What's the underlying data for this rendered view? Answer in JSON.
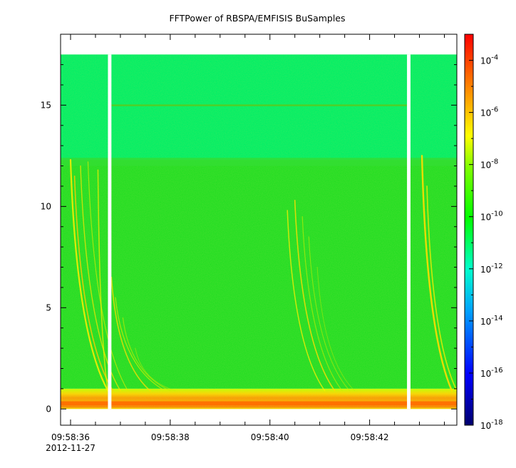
{
  "chart_data": {
    "type": "heatmap",
    "title": "FFTPower of RBSPA/EMFISIS  BuSamples",
    "xlabel": "",
    "ylabel": "",
    "x_ticks": [
      {
        "label": "09:58:36",
        "sublabel": "2012-11-27",
        "t": 36
      },
      {
        "label": "09:58:38",
        "t": 38
      },
      {
        "label": "09:58:40",
        "t": 40
      },
      {
        "label": "09:58:42",
        "t": 42
      }
    ],
    "x_range_seconds": [
      35.8,
      43.75
    ],
    "y_ticks": [
      {
        "label": "0",
        "v": 0
      },
      {
        "label": "5",
        "v": 5
      },
      {
        "label": "10",
        "v": 10
      },
      {
        "label": "15",
        "v": 15
      }
    ],
    "ylim": [
      -0.8,
      18.5
    ],
    "data_top_frequency": 17.5,
    "data_gaps_seconds": [
      [
        36.75,
        36.82
      ],
      [
        42.75,
        42.82
      ]
    ],
    "colorbar": {
      "scale": "log",
      "range": [
        1e-18,
        0.001
      ],
      "ticks": [
        {
          "base": "10",
          "exp": "-4",
          "v": -4
        },
        {
          "base": "10",
          "exp": "-6",
          "v": -6
        },
        {
          "base": "10",
          "exp": "-8",
          "v": -8
        },
        {
          "base": "10",
          "exp": "-10",
          "v": -10
        },
        {
          "base": "10",
          "exp": "-12",
          "v": -12
        },
        {
          "base": "10",
          "exp": "-14",
          "v": -14
        },
        {
          "base": "10",
          "exp": "-16",
          "v": -16
        },
        {
          "base": "10",
          "exp": "-18",
          "v": -18
        }
      ],
      "colormap": [
        "#00008b",
        "#0000ff",
        "#00ffff",
        "#00ff00",
        "#ffff00",
        "#ff0000"
      ]
    },
    "bands": [
      {
        "from": 12.3,
        "to": 17.5,
        "level": "background ~1e-12",
        "color": "#00ee66"
      },
      {
        "from": 1.0,
        "to": 12.3,
        "level": "background ~1e-10",
        "color": "#22dd22"
      },
      {
        "from": 0.0,
        "to": 1.0,
        "level": "low-frequency ~1e-8",
        "color": "#ffcc00"
      }
    ],
    "line_feature_frequency": 15.0
  }
}
